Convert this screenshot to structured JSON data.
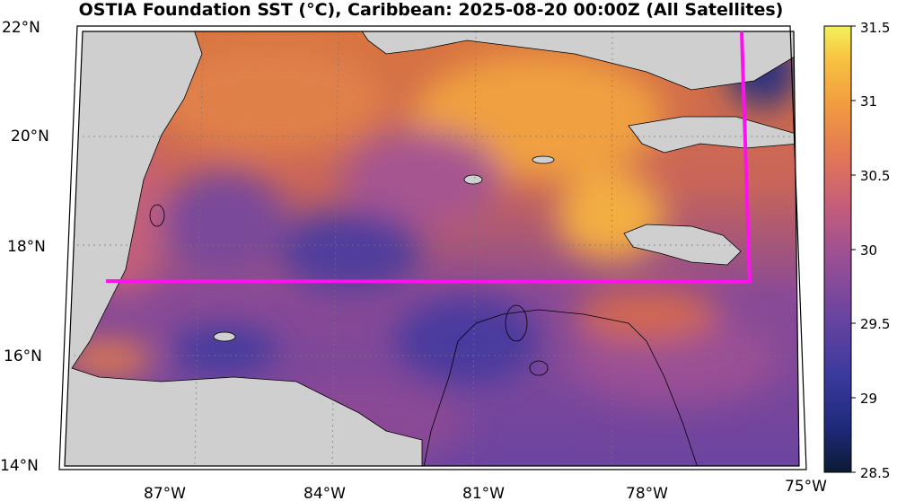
{
  "title": "OSTIA Foundation SST (°C), Caribbean: 2025-08-20 00:00Z (All Satellites)",
  "map": {
    "region": "Caribbean",
    "lat_labels": [
      "22°N",
      "20°N",
      "18°N",
      "16°N",
      "14°N"
    ],
    "lon_labels": [
      "87°W",
      "84°W",
      "81°W",
      "78°W",
      "75°W"
    ],
    "land_color": "#cfcfcf",
    "boundary_color": "#ff10f0",
    "coast_color": "#000000",
    "grid": "dotted"
  },
  "colorbar": {
    "ticks": [
      "31.5",
      "31",
      "30.5",
      "30",
      "29.5",
      "29",
      "28.5"
    ],
    "min": 28.5,
    "max": 31.5,
    "colormap": [
      "#0b1a33",
      "#1f2a7a",
      "#3b3a9e",
      "#6a44a0",
      "#9a4f94",
      "#c65e7a",
      "#e47a52",
      "#f29e3f",
      "#f7c441",
      "#f2f25a"
    ]
  }
}
